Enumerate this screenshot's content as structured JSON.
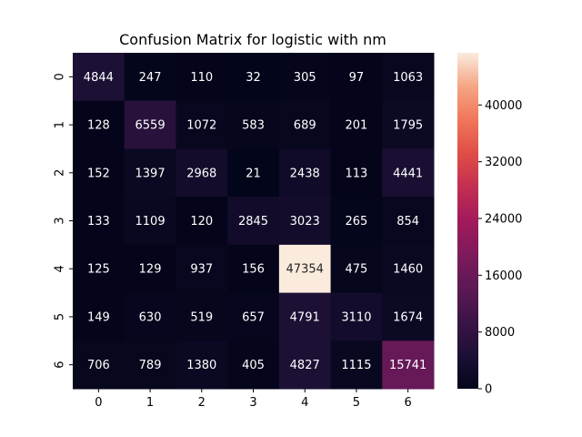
{
  "chart_data": {
    "type": "heatmap",
    "title": "Confusion Matrix for logistic with nm",
    "x_categories": [
      "0",
      "1",
      "2",
      "3",
      "4",
      "5",
      "6"
    ],
    "y_categories": [
      "0",
      "1",
      "2",
      "3",
      "4",
      "5",
      "6"
    ],
    "values": [
      [
        4844,
        247,
        110,
        32,
        305,
        97,
        1063
      ],
      [
        128,
        6559,
        1072,
        583,
        689,
        201,
        1795
      ],
      [
        152,
        1397,
        2968,
        21,
        2438,
        113,
        4441
      ],
      [
        133,
        1109,
        120,
        2845,
        3023,
        265,
        854
      ],
      [
        125,
        129,
        937,
        156,
        47354,
        475,
        1460
      ],
      [
        149,
        630,
        519,
        657,
        4791,
        3110,
        1674
      ],
      [
        706,
        789,
        1380,
        405,
        4827,
        1115,
        15741
      ]
    ],
    "colorbar": {
      "min": 0,
      "max": 47354,
      "ticks": [
        0,
        8000,
        16000,
        24000,
        32000,
        40000
      ],
      "colormap": "rocket"
    }
  }
}
